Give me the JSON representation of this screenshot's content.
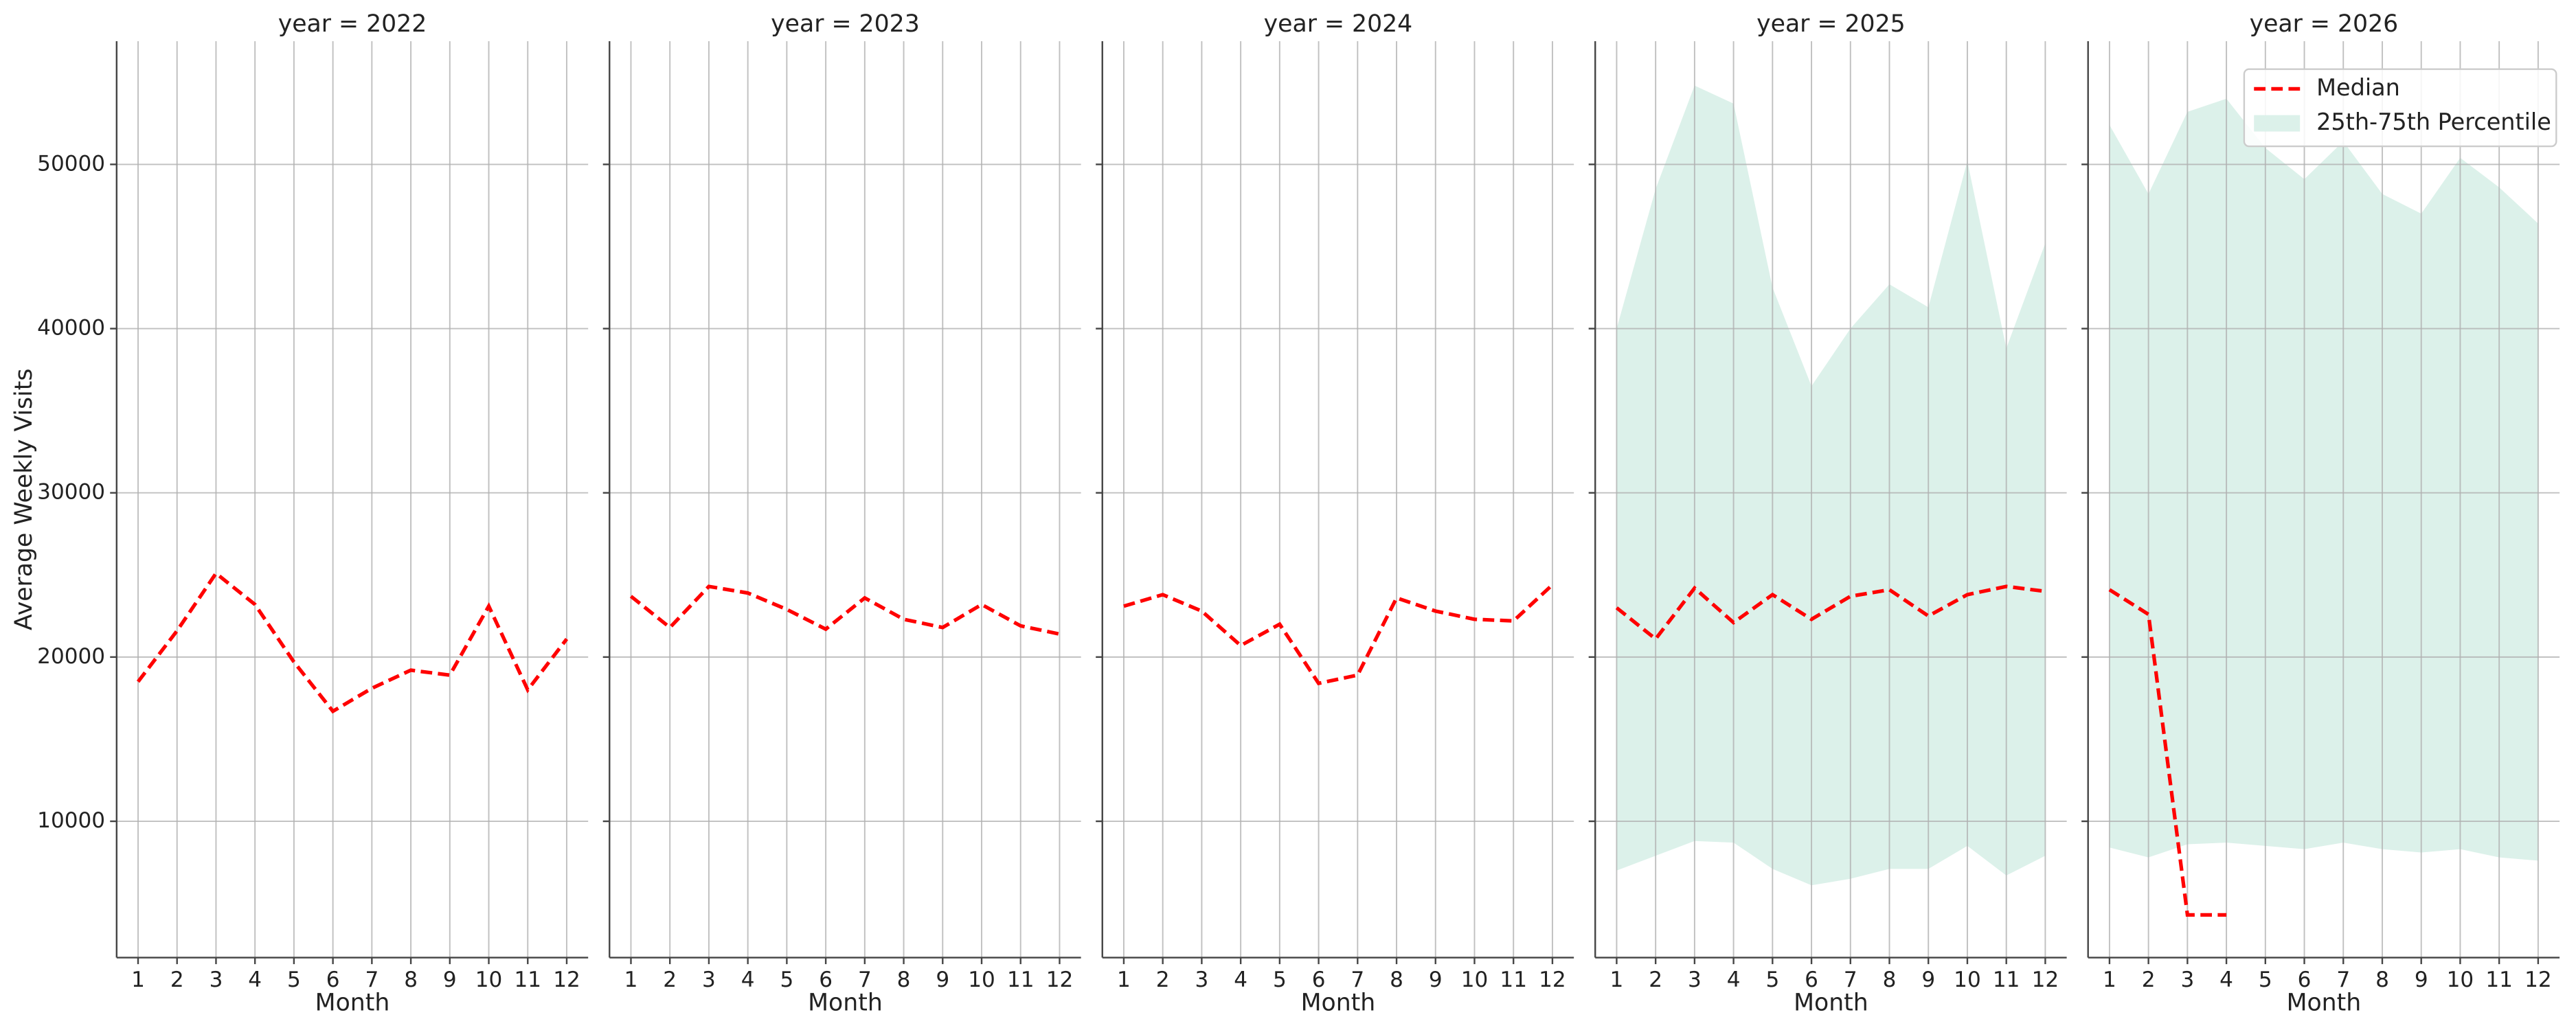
{
  "chart_data": [
    {
      "type": "line",
      "title": "year = 2022",
      "x_label": "Month",
      "y_label": "Average Weekly Visits",
      "x": [
        1,
        2,
        3,
        4,
        5,
        6,
        7,
        8,
        9,
        10,
        11,
        12
      ],
      "xlim": [
        0.45,
        12.55
      ],
      "xticks": [
        1,
        2,
        3,
        4,
        5,
        6,
        7,
        8,
        9,
        10,
        11,
        12
      ],
      "ylim": [
        1700,
        57500
      ],
      "yticks": [
        10000,
        20000,
        30000,
        40000,
        50000
      ],
      "grid": true,
      "series": [
        {
          "color": "#ff0000",
          "style": "dashed",
          "values": [
            18500,
            21600,
            25100,
            23200,
            19700,
            16700,
            18100,
            19200,
            18900,
            23100,
            18000,
            21100
          ]
        }
      ]
    },
    {
      "type": "line",
      "title": "year = 2023",
      "x_label": "Month",
      "x": [
        1,
        2,
        3,
        4,
        5,
        6,
        7,
        8,
        9,
        10,
        11,
        12
      ],
      "xlim": [
        0.45,
        12.55
      ],
      "xticks": [
        1,
        2,
        3,
        4,
        5,
        6,
        7,
        8,
        9,
        10,
        11,
        12
      ],
      "grid": true,
      "series": [
        {
          "color": "#ff0000",
          "style": "dashed",
          "values": [
            23700,
            21800,
            24300,
            23900,
            22900,
            21700,
            23600,
            22300,
            21800,
            23200,
            21900,
            21400
          ]
        }
      ]
    },
    {
      "type": "line",
      "title": "year = 2024",
      "x_label": "Month",
      "x": [
        1,
        2,
        3,
        4,
        5,
        6,
        7,
        8,
        9,
        10,
        11,
        12
      ],
      "xlim": [
        0.45,
        12.55
      ],
      "xticks": [
        1,
        2,
        3,
        4,
        5,
        6,
        7,
        8,
        9,
        10,
        11,
        12
      ],
      "grid": true,
      "series": [
        {
          "color": "#ff0000",
          "style": "dashed",
          "values": [
            23100,
            23800,
            22800,
            20700,
            22000,
            18400,
            18900,
            23600,
            22800,
            22300,
            22200,
            24400
          ]
        }
      ]
    },
    {
      "type": "line",
      "title": "year = 2025",
      "x_label": "Month",
      "x": [
        1,
        2,
        3,
        4,
        5,
        6,
        7,
        8,
        9,
        10,
        11,
        12
      ],
      "xlim": [
        0.45,
        12.55
      ],
      "xticks": [
        1,
        2,
        3,
        4,
        5,
        6,
        7,
        8,
        9,
        10,
        11,
        12
      ],
      "grid": true,
      "series": [
        {
          "color": "#ff0000",
          "style": "dashed",
          "values": [
            23000,
            21100,
            24200,
            22100,
            23800,
            22300,
            23700,
            24100,
            22500,
            23800,
            24300,
            24000
          ]
        },
        {
          "color": "#dcf1ea",
          "style": "band",
          "lower": [
            7000,
            7900,
            8800,
            8700,
            7100,
            6100,
            6500,
            7100,
            7100,
            8500,
            6700,
            7900
          ],
          "upper": [
            40000,
            48500,
            54800,
            53700,
            42500,
            36500,
            40000,
            42700,
            41300,
            50200,
            38800,
            45200
          ]
        }
      ]
    },
    {
      "type": "line",
      "title": "year = 2026",
      "x_label": "Month",
      "x": [
        1,
        2,
        3,
        4,
        5,
        6,
        7,
        8,
        9,
        10,
        11,
        12
      ],
      "xlim": [
        0.45,
        12.55
      ],
      "xticks": [
        1,
        2,
        3,
        4,
        5,
        6,
        7,
        8,
        9,
        10,
        11,
        12
      ],
      "grid": true,
      "legend": "upper right",
      "series": [
        {
          "name": "Median",
          "color": "#ff0000",
          "style": "dashed",
          "values": [
            24100,
            22600,
            4300,
            4300,
            null,
            null,
            null,
            null,
            null,
            null,
            null,
            null
          ]
        },
        {
          "name": "25th-75th Percentile",
          "color": "#dcf1ea",
          "style": "band",
          "lower": [
            8400,
            7800,
            8600,
            8700,
            8500,
            8300,
            8700,
            8300,
            8100,
            8300,
            7800,
            7600
          ],
          "upper": [
            52400,
            48200,
            53200,
            54000,
            51000,
            49100,
            51400,
            48200,
            47000,
            50400,
            48600,
            46400
          ]
        }
      ]
    }
  ]
}
